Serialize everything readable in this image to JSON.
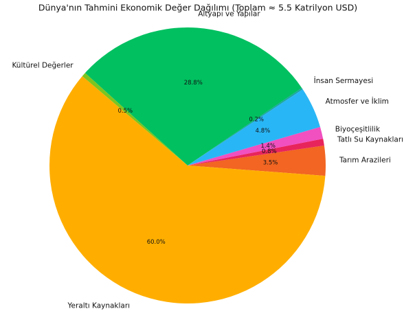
{
  "chart_data": {
    "type": "pie",
    "title": "Dünya'nın Tahmini Ekonomik Değer Dağılımı (Toplam ≈ 5.5 Katrilyon USD)",
    "categories": [
      "Tarım Arazileri",
      "Tatlı Su Kaynakları",
      "Biyoçeşitlilik",
      "Atmosfer ve İklim",
      "İnsan Sermayesi",
      "Altyapı ve Yapılar",
      "Kültürel Değerler",
      "Yeraltı Kaynakları"
    ],
    "values": [
      3.5,
      0.8,
      1.4,
      4.8,
      0.2,
      28.8,
      0.5,
      60.0
    ],
    "value_labels": [
      "3.5%",
      "0.8%",
      "1.4%",
      "4.8%",
      "0.2%",
      "28.8%",
      "0.5%",
      "60.0%"
    ],
    "colors": [
      "#f26522",
      "#e8245c",
      "#f050c0",
      "#29b6f6",
      "#1aa6a0",
      "#00c060",
      "#7cc520",
      "#ffae00"
    ]
  }
}
